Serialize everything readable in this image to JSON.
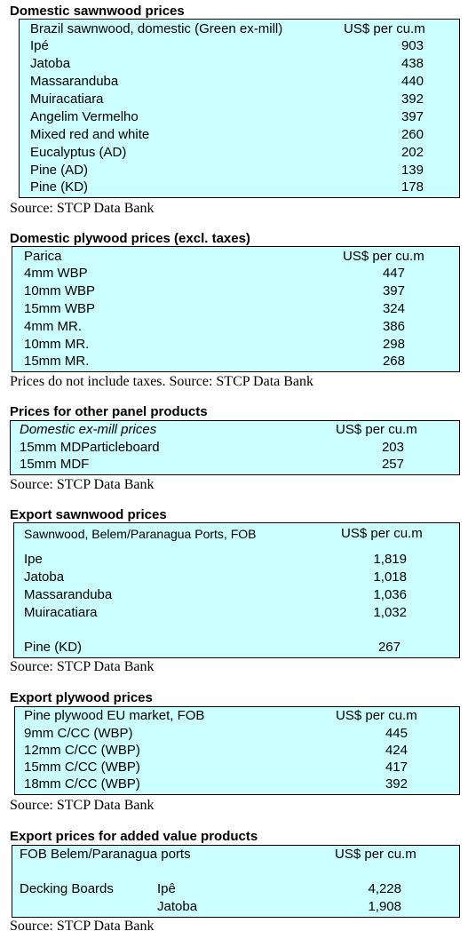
{
  "sections": [
    {
      "heading": "Domestic sawnwood prices",
      "header": {
        "label": "Brazil sawnwood, domestic (Green ex-mill)",
        "unit": "US$ per cu.m"
      },
      "rows": [
        {
          "label": "Ipé",
          "value": "903"
        },
        {
          "label": "Jatoba",
          "value": "438"
        },
        {
          "label": "Massaranduba",
          "value": "440"
        },
        {
          "label": "Muiracatiara",
          "value": "392"
        },
        {
          "label": "Angelim Vermelho",
          "value": "397"
        },
        {
          "label": "Mixed red and white",
          "value": "260"
        },
        {
          "label": "Eucalyptus (AD)",
          "value": "202"
        },
        {
          "label": "Pine (AD)",
          "value": "139"
        },
        {
          "label": "Pine (KD)",
          "value": "178"
        }
      ],
      "source": "Source: STCP Data Bank"
    },
    {
      "heading": "Domestic plywood prices (excl. taxes)",
      "header": {
        "label": "Parica",
        "unit": "US$ per cu.m"
      },
      "rows": [
        {
          "label": "4mm WBP",
          "value": "447"
        },
        {
          "label": "10mm WBP",
          "value": "397"
        },
        {
          "label": "15mm WBP",
          "value": "324"
        },
        {
          "label": "4mm MR.",
          "value": "386"
        },
        {
          "label": "10mm MR.",
          "value": "298"
        },
        {
          "label": "15mm MR.",
          "value": "268"
        }
      ],
      "source": "Prices do not include taxes. Source: STCP Data Bank"
    },
    {
      "heading": "Prices for other panel products",
      "header": {
        "label": "Domestic ex-mill prices",
        "unit": "US$ per cu.m"
      },
      "rows": [
        {
          "label": "15mm MDParticleboard",
          "value": "203"
        },
        {
          "label": "15mm MDF",
          "value": "257"
        }
      ],
      "source": "Source: STCP Data Bank"
    },
    {
      "heading": "Export sawnwood prices",
      "header": {
        "label": "Sawnwood, Belem/Paranagua Ports, FOB",
        "unit": "US$ per cu.m"
      },
      "rows": [
        {
          "label": "Ipe",
          "value": "1,819"
        },
        {
          "label": "Jatoba",
          "value": "1,018"
        },
        {
          "label": "Massaranduba",
          "value": "1,036"
        },
        {
          "label": "Muiracatiara",
          "value": "1,032"
        },
        {
          "label": "Pine (KD)",
          "value": "267"
        }
      ],
      "source": "Source: STCP Data Bank"
    },
    {
      "heading": "Export plywood prices",
      "header": {
        "label": "Pine plywood EU market, FOB",
        "unit": "US$ per cu.m"
      },
      "rows": [
        {
          "label": "9mm C/CC (WBP)",
          "value": "445"
        },
        {
          "label": "12mm C/CC (WBP)",
          "value": "424"
        },
        {
          "label": "15mm C/CC (WBP)",
          "value": "417"
        },
        {
          "label": "18mm C/CC (WBP)",
          "value": "392"
        }
      ],
      "source": "Source: STCP Data Bank"
    },
    {
      "heading": "Export prices for added value products",
      "header": {
        "label": "FOB Belem/Paranagua ports",
        "unit": "US$ per cu.m"
      },
      "product": "Decking Boards",
      "rows": [
        {
          "label": "Ipê",
          "value": "4,228"
        },
        {
          "label": "Jatoba",
          "value": "1,908"
        }
      ],
      "source": "Source: STCP Data Bank"
    }
  ],
  "colors": {
    "table_fill": "#ccffff",
    "border": "#000000"
  }
}
